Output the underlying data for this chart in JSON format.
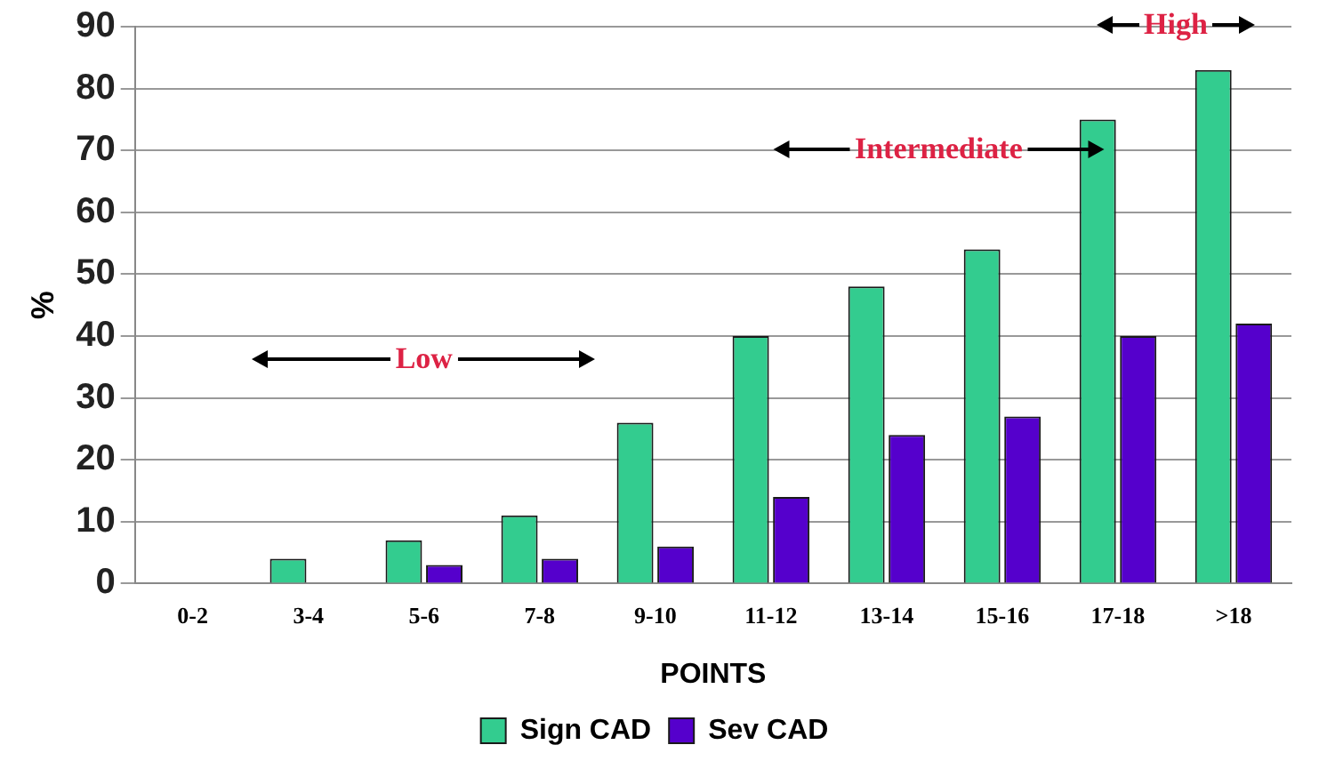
{
  "chart_data": {
    "type": "bar",
    "xlabel": "POINTS",
    "ylabel": "%",
    "categories": [
      "0-2",
      "3-4",
      "5-6",
      "7-8",
      "9-10",
      "11-12",
      "13-14",
      "15-16",
      "17-18",
      ">18"
    ],
    "series": [
      {
        "name": "Sign CAD",
        "color": "#33cc8f",
        "values": [
          0,
          4,
          7,
          11,
          26,
          40,
          48,
          54,
          75,
          83
        ]
      },
      {
        "name": "Sev CAD",
        "color": "#5500cc",
        "values": [
          0,
          0,
          3,
          4,
          6,
          14,
          24,
          27,
          40,
          42
        ]
      }
    ],
    "ylim": [
      0,
      90
    ],
    "yticks": [
      0,
      10,
      20,
      30,
      40,
      50,
      60,
      70,
      80,
      90
    ],
    "grid": "y",
    "legend": "bottom",
    "annotations": [
      "Low",
      "Intermediate",
      "High"
    ]
  }
}
